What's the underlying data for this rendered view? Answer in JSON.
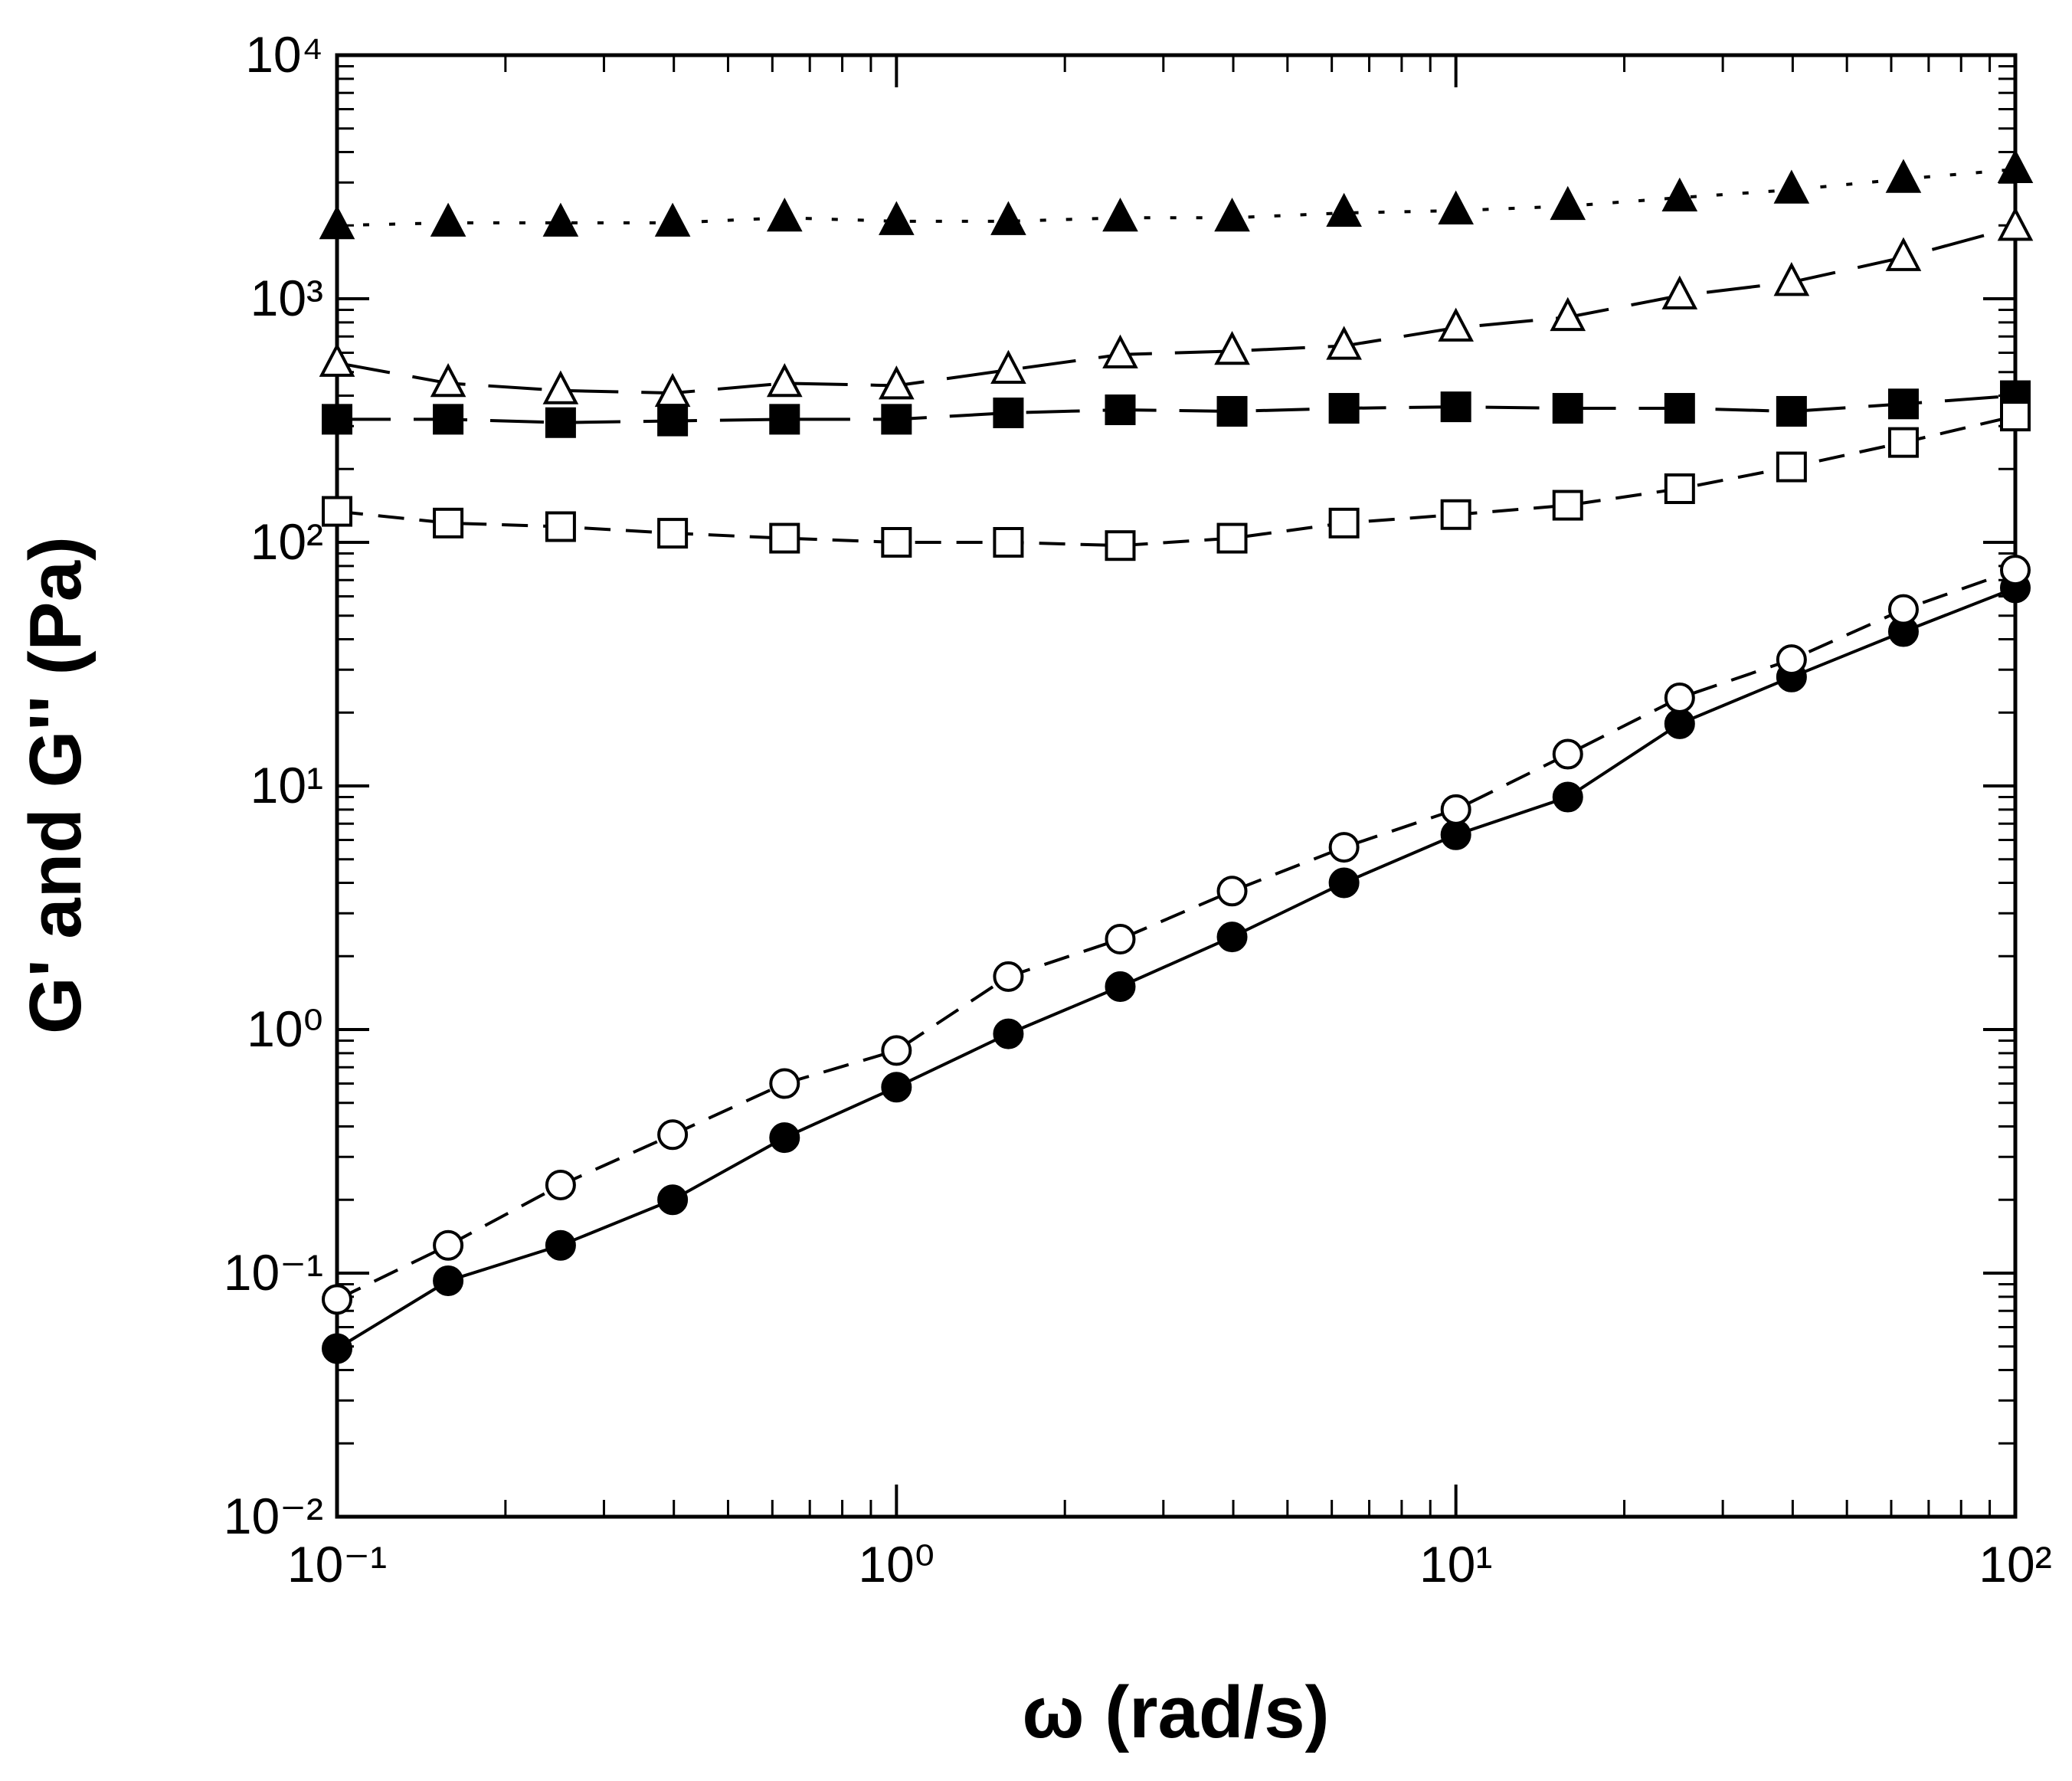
{
  "chart_data": {
    "type": "line",
    "xlabel": "ω  (rad/s)",
    "ylabel": "G' and G'' (Pa)",
    "x": [
      0.1,
      0.158,
      0.251,
      0.398,
      0.631,
      1,
      1.585,
      2.512,
      3.981,
      6.31,
      10,
      15.85,
      25.12,
      39.81,
      63.1,
      100
    ],
    "xscale": "log",
    "yscale": "log",
    "xlim": [
      0.1,
      100
    ],
    "ylim": [
      0.01,
      10000
    ],
    "xticks": [
      {
        "value": 0.1,
        "label": "10⁻¹"
      },
      {
        "value": 1,
        "label": "10⁰"
      },
      {
        "value": 10,
        "label": "10¹"
      },
      {
        "value": 100,
        "label": "10²"
      }
    ],
    "yticks": [
      {
        "value": 0.01,
        "label": "10⁻²"
      },
      {
        "value": 0.1,
        "label": "10⁻¹"
      },
      {
        "value": 1,
        "label": "10⁰"
      },
      {
        "value": 10,
        "label": "10¹"
      },
      {
        "value": 100,
        "label": "10²"
      },
      {
        "value": 1000,
        "label": "10³"
      },
      {
        "value": 10000,
        "label": "10⁴"
      }
    ],
    "minor_ticks": true,
    "series": [
      {
        "color": "#000000",
        "marker": "triangle",
        "filled": true,
        "dash": "dotted",
        "values": [
          2000,
          2050,
          2050,
          2050,
          2150,
          2080,
          2080,
          2150,
          2150,
          2250,
          2300,
          2400,
          2600,
          2800,
          3100,
          3400
        ]
      },
      {
        "color": "#000000",
        "marker": "triangle",
        "filled": false,
        "dash": "longdash",
        "values": [
          545,
          450,
          420,
          410,
          450,
          440,
          510,
          590,
          610,
          640,
          760,
          840,
          1030,
          1170,
          1480,
          1970
        ]
      },
      {
        "color": "#000000",
        "marker": "square",
        "filled": true,
        "dash": "longdash",
        "values": [
          320,
          320,
          310,
          315,
          320,
          320,
          340,
          350,
          345,
          355,
          360,
          355,
          355,
          345,
          370,
          400
        ]
      },
      {
        "color": "#000000",
        "marker": "square",
        "filled": false,
        "dash": "dashed",
        "values": [
          134,
          120,
          116,
          109,
          104,
          100,
          100,
          97,
          104,
          120,
          130,
          142,
          166,
          204,
          257,
          330
        ]
      },
      {
        "color": "#000000",
        "marker": "circle",
        "filled": true,
        "dash": "solid",
        "values": [
          0.049,
          0.093,
          0.13,
          0.2,
          0.36,
          0.58,
          0.96,
          1.5,
          2.4,
          4.0,
          6.3,
          9.0,
          18,
          28,
          43,
          65
        ]
      },
      {
        "color": "#000000",
        "marker": "circle",
        "filled": false,
        "dash": "dashed",
        "values": [
          0.078,
          0.13,
          0.23,
          0.37,
          0.6,
          0.82,
          1.65,
          2.35,
          3.7,
          5.6,
          8.0,
          13.5,
          23,
          33,
          53,
          77
        ]
      }
    ]
  }
}
